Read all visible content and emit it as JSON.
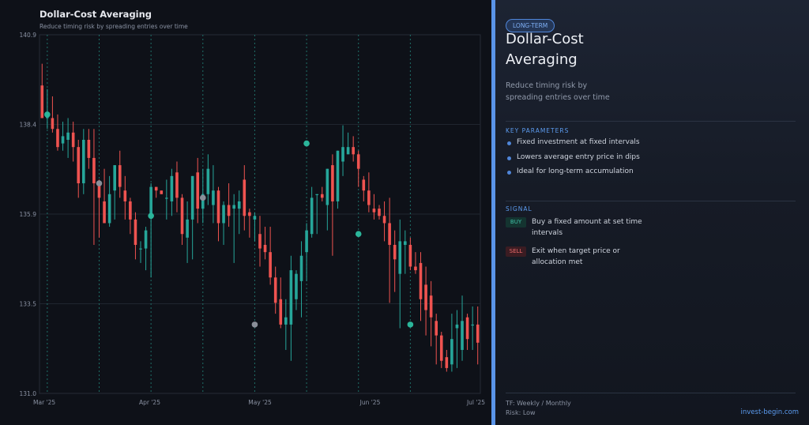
{
  "chart_data": {
    "type": "candlestick",
    "title": "Dollar-Cost Averaging",
    "subtitle": "Reduce timing risk by spreading entries over time",
    "ylim": [
      131.0,
      140.9
    ],
    "y_ticks": [
      "140.9",
      "138.4",
      "135.9",
      "133.5",
      "131.0"
    ],
    "x_tick_labels": [
      "Mar '25",
      "Apr '25",
      "May '25",
      "Jun '25",
      "Jul '25"
    ],
    "grid": true,
    "colors": {
      "up": "#26a69a",
      "down": "#ef5350",
      "marker": "#2bb59a",
      "marker_grey": "#8a8f99",
      "dca_line": "#1f6f68"
    },
    "candles": [
      {
        "o": 139.5,
        "h": 140.1,
        "l": 138.6,
        "c": 138.6
      },
      {
        "o": 138.6,
        "h": 139.4,
        "l": 138.3,
        "c": 138.7
      },
      {
        "o": 138.6,
        "h": 139.2,
        "l": 138.2,
        "c": 138.3
      },
      {
        "o": 138.3,
        "h": 138.7,
        "l": 137.7,
        "c": 137.8
      },
      {
        "o": 137.9,
        "h": 138.5,
        "l": 137.7,
        "c": 138.1
      },
      {
        "o": 138.0,
        "h": 138.6,
        "l": 137.5,
        "c": 138.2
      },
      {
        "o": 138.2,
        "h": 138.5,
        "l": 137.4,
        "c": 137.8
      },
      {
        "o": 137.8,
        "h": 138.0,
        "l": 136.4,
        "c": 136.8
      },
      {
        "o": 136.8,
        "h": 138.3,
        "l": 136.5,
        "c": 138.0
      },
      {
        "o": 138.0,
        "h": 138.3,
        "l": 137.2,
        "c": 137.5
      },
      {
        "o": 137.5,
        "h": 138.3,
        "l": 135.1,
        "c": 136.8
      },
      {
        "o": 136.8,
        "h": 136.9,
        "l": 135.3,
        "c": 136.4
      },
      {
        "o": 136.3,
        "h": 137.2,
        "l": 135.7,
        "c": 135.7
      },
      {
        "o": 135.7,
        "h": 137.0,
        "l": 135.6,
        "c": 136.5
      },
      {
        "o": 136.6,
        "h": 137.3,
        "l": 135.8,
        "c": 137.3
      },
      {
        "o": 137.3,
        "h": 137.7,
        "l": 136.4,
        "c": 136.7
      },
      {
        "o": 136.6,
        "h": 137.0,
        "l": 135.8,
        "c": 136.3
      },
      {
        "o": 136.3,
        "h": 136.4,
        "l": 135.4,
        "c": 135.8
      },
      {
        "o": 135.8,
        "h": 136.0,
        "l": 134.7,
        "c": 135.1
      },
      {
        "o": 135.0,
        "h": 135.2,
        "l": 134.6,
        "c": 135.0
      },
      {
        "o": 135.0,
        "h": 135.6,
        "l": 134.4,
        "c": 135.5
      },
      {
        "o": 135.9,
        "h": 136.8,
        "l": 134.2,
        "c": 136.7
      },
      {
        "o": 136.7,
        "h": 136.7,
        "l": 136.4,
        "c": 136.6
      },
      {
        "o": 136.6,
        "h": 136.6,
        "l": 136.5,
        "c": 136.5
      },
      {
        "o": 136.4,
        "h": 136.9,
        "l": 135.8,
        "c": 136.4
      },
      {
        "o": 136.3,
        "h": 137.2,
        "l": 135.9,
        "c": 137.0
      },
      {
        "o": 137.1,
        "h": 137.4,
        "l": 136.0,
        "c": 136.4
      },
      {
        "o": 136.4,
        "h": 136.5,
        "l": 135.1,
        "c": 135.4
      },
      {
        "o": 135.3,
        "h": 136.3,
        "l": 134.6,
        "c": 135.8
      },
      {
        "o": 135.8,
        "h": 137.0,
        "l": 134.7,
        "c": 137.0
      },
      {
        "o": 137.1,
        "h": 137.5,
        "l": 135.7,
        "c": 136.1
      },
      {
        "o": 136.1,
        "h": 137.2,
        "l": 135.7,
        "c": 136.5
      },
      {
        "o": 136.5,
        "h": 137.6,
        "l": 136.2,
        "c": 137.2
      },
      {
        "o": 136.2,
        "h": 137.3,
        "l": 135.7,
        "c": 136.6
      },
      {
        "o": 136.6,
        "h": 136.7,
        "l": 135.2,
        "c": 135.7
      },
      {
        "o": 135.7,
        "h": 136.3,
        "l": 135.1,
        "c": 136.2
      },
      {
        "o": 136.2,
        "h": 136.8,
        "l": 135.6,
        "c": 135.9
      },
      {
        "o": 136.1,
        "h": 136.5,
        "l": 134.6,
        "c": 136.2
      },
      {
        "o": 136.1,
        "h": 136.6,
        "l": 135.4,
        "c": 136.3
      },
      {
        "o": 136.9,
        "h": 137.3,
        "l": 135.5,
        "c": 135.9
      },
      {
        "o": 136.0,
        "h": 136.1,
        "l": 135.3,
        "c": 135.9
      },
      {
        "o": 135.8,
        "h": 136.0,
        "l": 135.2,
        "c": 135.9
      },
      {
        "o": 135.4,
        "h": 135.9,
        "l": 134.5,
        "c": 135.0
      },
      {
        "o": 135.1,
        "h": 135.6,
        "l": 134.7,
        "c": 134.9
      },
      {
        "o": 134.9,
        "h": 135.6,
        "l": 134.0,
        "c": 134.2
      },
      {
        "o": 134.2,
        "h": 134.5,
        "l": 133.2,
        "c": 133.5
      },
      {
        "o": 133.6,
        "h": 134.2,
        "l": 132.8,
        "c": 132.9
      },
      {
        "o": 132.9,
        "h": 133.6,
        "l": 132.2,
        "c": 133.1
      },
      {
        "o": 132.9,
        "h": 134.8,
        "l": 131.9,
        "c": 134.4
      },
      {
        "o": 133.6,
        "h": 134.4,
        "l": 133.3,
        "c": 134.3
      },
      {
        "o": 134.1,
        "h": 135.2,
        "l": 133.1,
        "c": 134.8
      },
      {
        "o": 134.9,
        "h": 135.7,
        "l": 134.1,
        "c": 135.5
      },
      {
        "o": 135.4,
        "h": 136.7,
        "l": 135.3,
        "c": 136.4
      },
      {
        "o": 136.5,
        "h": 136.5,
        "l": 135.4,
        "c": 136.5
      },
      {
        "o": 136.5,
        "h": 136.7,
        "l": 136.3,
        "c": 136.4
      },
      {
        "o": 136.2,
        "h": 137.2,
        "l": 135.5,
        "c": 137.2
      },
      {
        "o": 137.3,
        "h": 137.6,
        "l": 134.8,
        "c": 136.3
      },
      {
        "o": 136.3,
        "h": 137.7,
        "l": 136.1,
        "c": 137.7
      },
      {
        "o": 137.4,
        "h": 138.4,
        "l": 137.0,
        "c": 137.8
      },
      {
        "o": 137.6,
        "h": 138.2,
        "l": 137.6,
        "c": 137.8
      },
      {
        "o": 137.8,
        "h": 138.1,
        "l": 137.4,
        "c": 137.6
      },
      {
        "o": 137.6,
        "h": 137.7,
        "l": 136.7,
        "c": 137.2
      },
      {
        "o": 136.9,
        "h": 137.0,
        "l": 136.3,
        "c": 136.6
      },
      {
        "o": 136.6,
        "h": 137.1,
        "l": 136.0,
        "c": 136.2
      },
      {
        "o": 136.1,
        "h": 136.5,
        "l": 135.8,
        "c": 136.0
      },
      {
        "o": 136.1,
        "h": 136.2,
        "l": 135.8,
        "c": 135.9
      },
      {
        "o": 135.9,
        "h": 136.3,
        "l": 135.2,
        "c": 135.7
      },
      {
        "o": 135.7,
        "h": 136.4,
        "l": 133.5,
        "c": 135.1
      },
      {
        "o": 135.1,
        "h": 135.5,
        "l": 133.8,
        "c": 134.7
      },
      {
        "o": 134.3,
        "h": 135.8,
        "l": 132.8,
        "c": 135.2
      },
      {
        "o": 135.1,
        "h": 135.5,
        "l": 134.3,
        "c": 135.2
      },
      {
        "o": 135.1,
        "h": 135.3,
        "l": 134.4,
        "c": 134.5
      },
      {
        "o": 134.5,
        "h": 134.9,
        "l": 134.3,
        "c": 134.4
      },
      {
        "o": 134.6,
        "h": 134.9,
        "l": 133.0,
        "c": 133.6
      },
      {
        "o": 134.0,
        "h": 134.5,
        "l": 132.6,
        "c": 133.3
      },
      {
        "o": 133.7,
        "h": 134.1,
        "l": 132.3,
        "c": 133.1
      },
      {
        "o": 133.0,
        "h": 133.2,
        "l": 131.8,
        "c": 132.6
      },
      {
        "o": 132.6,
        "h": 132.7,
        "l": 131.7,
        "c": 131.9
      },
      {
        "o": 132.0,
        "h": 132.2,
        "l": 131.6,
        "c": 131.7
      },
      {
        "o": 131.8,
        "h": 133.2,
        "l": 131.6,
        "c": 132.5
      },
      {
        "o": 132.8,
        "h": 133.3,
        "l": 131.7,
        "c": 132.9
      },
      {
        "o": 132.2,
        "h": 133.7,
        "l": 131.9,
        "c": 133.0
      },
      {
        "o": 133.1,
        "h": 133.2,
        "l": 132.2,
        "c": 132.5
      },
      {
        "o": 132.9,
        "h": 133.4,
        "l": 132.2,
        "c": 132.9
      },
      {
        "o": 132.9,
        "h": 133.4,
        "l": 131.8,
        "c": 132.4
      }
    ],
    "dca_entries": [
      {
        "i": 1,
        "price": 138.7,
        "color": "marker"
      },
      {
        "i": 11,
        "price": 136.8,
        "color": "marker_grey"
      },
      {
        "i": 21,
        "price": 135.9,
        "color": "marker"
      },
      {
        "i": 31,
        "price": 136.4,
        "color": "marker_grey"
      },
      {
        "i": 41,
        "price": 132.9,
        "color": "marker_grey"
      },
      {
        "i": 51,
        "price": 137.9,
        "color": "marker"
      },
      {
        "i": 61,
        "price": 135.4,
        "color": "marker"
      },
      {
        "i": 71,
        "price": 132.9,
        "color": "marker"
      }
    ]
  },
  "panel": {
    "tag": "LONG-TERM",
    "title": "Dollar-Cost Averaging",
    "description": "Reduce timing risk by spreading entries over time",
    "key_params_header": "KEY PARAMETERS",
    "params": [
      "Fixed investment at fixed intervals",
      "Lowers average entry price in dips",
      "Ideal for long-term accumulation"
    ],
    "signal_header": "SIGNAL",
    "buy_label": "BUY",
    "buy_text": "Buy a fixed amount at set time intervals",
    "sell_label": "SELL",
    "sell_text": "Exit when target price or allocation met",
    "timeframe": "TF: Weekly / Monthly",
    "risk": "Risk: Low",
    "brand": "invest-begin.com"
  }
}
